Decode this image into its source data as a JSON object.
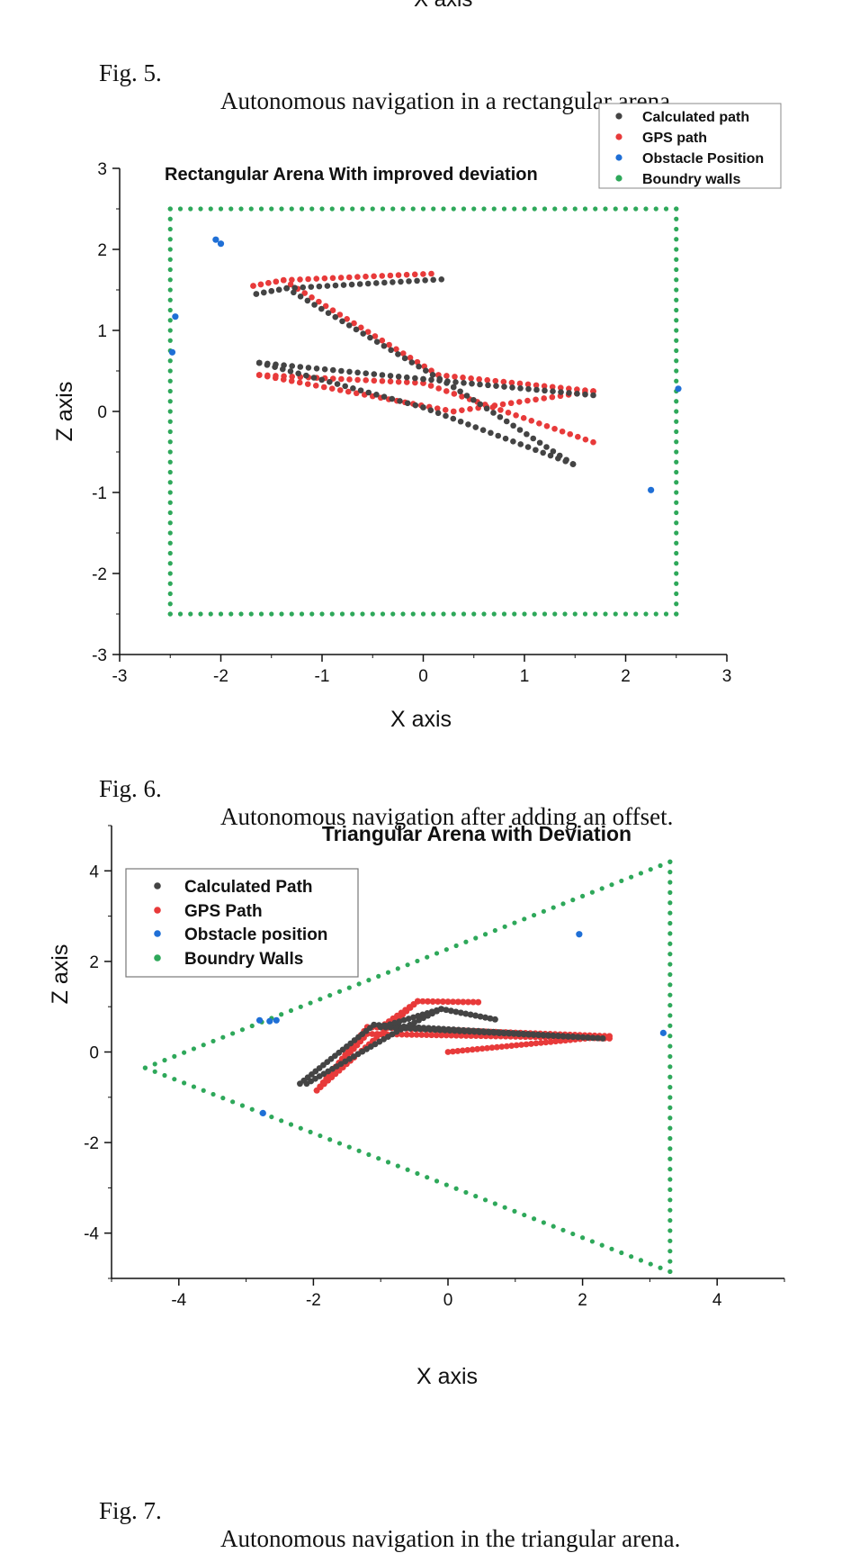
{
  "top_fragment": "X axis",
  "captions": [
    {
      "num": "Fig. 5.",
      "text": "Autonomous navigation in a rectangular arena."
    },
    {
      "num": "Fig. 6.",
      "text": "Autonomous navigation after adding an offset."
    },
    {
      "num": "Fig. 7.",
      "text": "Autonomous navigation in the triangular arena."
    }
  ],
  "chart_data": [
    {
      "type": "scatter",
      "title": "Rectangular Arena With improved deviation",
      "xlabel": "X axis",
      "ylabel": "Z axis",
      "xlim": [
        -3,
        3
      ],
      "ylim": [
        -3,
        3
      ],
      "xticks": [
        "-3",
        "-2",
        "-1",
        "0",
        "1",
        "2",
        "3"
      ],
      "yticks": [
        "-3",
        "-2",
        "-1",
        "0",
        "1",
        "2",
        "3"
      ],
      "grid": false,
      "legend_position": "top-right",
      "colors": {
        "calculated": "#444444",
        "gps": "#e83a3a",
        "obstacle": "#1f6fd6",
        "walls": "#2ea85a"
      },
      "series": [
        {
          "name": "Calculated path",
          "polyline": [
            [
              0.18,
              1.63
            ],
            [
              -1.35,
              1.52
            ],
            [
              -1.65,
              1.45
            ],
            [
              -1.35,
              1.52
            ],
            [
              0.3,
              0.3
            ],
            [
              1.48,
              -0.65
            ],
            [
              1.48,
              -0.65
            ],
            [
              0.0,
              0.05
            ],
            [
              -1.62,
              0.6
            ],
            [
              -1.62,
              0.6
            ],
            [
              0.0,
              0.4
            ],
            [
              1.68,
              0.2
            ]
          ]
        },
        {
          "name": "GPS path",
          "polyline": [
            [
              0.08,
              1.7
            ],
            [
              -1.38,
              1.62
            ],
            [
              -1.68,
              1.55
            ],
            [
              -1.38,
              1.62
            ],
            [
              0.15,
              0.45
            ],
            [
              1.68,
              0.25
            ],
            [
              1.68,
              0.25
            ],
            [
              0.3,
              0.0
            ],
            [
              -1.62,
              0.45
            ],
            [
              -1.62,
              0.45
            ],
            [
              0.0,
              0.35
            ],
            [
              1.68,
              -0.38
            ]
          ]
        },
        {
          "name": "Obstacle Position",
          "points": [
            [
              -2.05,
              2.12
            ],
            [
              -2.0,
              2.07
            ],
            [
              -2.45,
              1.17
            ],
            [
              -2.48,
              0.73
            ],
            [
              2.25,
              -0.97
            ],
            [
              2.52,
              0.28
            ]
          ]
        },
        {
          "name": "Boundry walls",
          "rect": {
            "x": [
              -2.5,
              2.5
            ],
            "y": [
              -2.5,
              2.5
            ]
          }
        }
      ]
    },
    {
      "type": "scatter",
      "title": "Triangular Arena with Deviation",
      "xlabel": "X axis",
      "ylabel": "Z axis",
      "xlim": [
        -5,
        5
      ],
      "ylim": [
        -5,
        5
      ],
      "xticks": [
        "-4",
        "-2",
        "0",
        "2",
        "4"
      ],
      "yticks": [
        "-4",
        "-2",
        "0",
        "2",
        "4"
      ],
      "grid": false,
      "legend_position": "top-left",
      "colors": {
        "calculated": "#444444",
        "gps": "#e83a3a",
        "obstacle": "#1f6fd6",
        "walls": "#2ea85a"
      },
      "series": [
        {
          "name": "Calculated Path",
          "polyline": [
            [
              -2.2,
              -0.7
            ],
            [
              -1.1,
              0.6
            ],
            [
              2.3,
              0.3
            ],
            [
              -1.0,
              0.55
            ],
            [
              -0.1,
              0.95
            ],
            [
              0.7,
              0.72
            ],
            [
              -0.1,
              0.95
            ],
            [
              -0.7,
              0.5
            ],
            [
              -2.1,
              -0.7
            ]
          ]
        },
        {
          "name": "GPS Path",
          "polyline": [
            [
              -1.95,
              -0.85
            ],
            [
              -1.2,
              0.4
            ],
            [
              2.4,
              0.3
            ],
            [
              -1.0,
              0.55
            ],
            [
              -0.45,
              1.12
            ],
            [
              0.45,
              1.1
            ],
            [
              -0.45,
              1.12
            ],
            [
              -1.95,
              -0.85
            ],
            [
              -1.2,
              0.55
            ],
            [
              2.4,
              0.35
            ],
            [
              0.0,
              0.0
            ]
          ]
        },
        {
          "name": "Obstacle position",
          "points": [
            [
              -2.8,
              0.7
            ],
            [
              -2.65,
              0.68
            ],
            [
              -2.55,
              0.7
            ],
            [
              -2.75,
              -1.35
            ],
            [
              1.95,
              2.6
            ],
            [
              3.2,
              0.42
            ]
          ]
        },
        {
          "name": "Boundry Walls",
          "triangle": [
            [
              -4.5,
              -0.35
            ],
            [
              3.3,
              4.2
            ],
            [
              3.3,
              -4.85
            ]
          ]
        }
      ]
    }
  ]
}
